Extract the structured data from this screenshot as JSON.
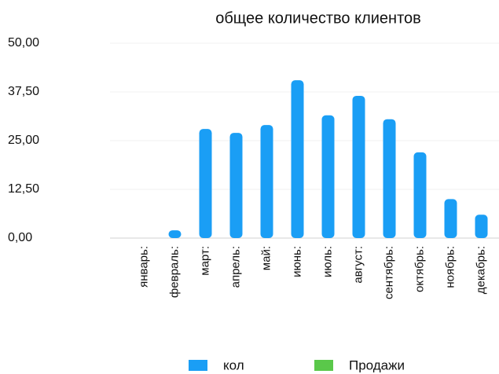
{
  "chart_data": {
    "type": "bar",
    "title": "общее количество клиентов",
    "categories": [
      "январь:",
      "февраль:",
      "март:",
      "апрель:",
      "май:",
      "июнь:",
      "июль:",
      "август:",
      "сентябрь:",
      "октябрь:",
      "ноябрь:",
      "декабрь:"
    ],
    "series": [
      {
        "name": "кол",
        "color": "#1a9ef5",
        "values": [
          0,
          2,
          28,
          27,
          29,
          40.5,
          31.5,
          36.5,
          30.5,
          22,
          10,
          6
        ]
      },
      {
        "name": "Продажи",
        "color": "#5ac84a",
        "values": [
          null,
          null,
          null,
          null,
          null,
          null,
          null,
          null,
          null,
          null,
          null,
          null
        ]
      }
    ],
    "ylim": [
      0,
      50
    ],
    "yticks": [
      {
        "value": 0,
        "label": "0,00"
      },
      {
        "value": 12.5,
        "label": "12,50"
      },
      {
        "value": 25,
        "label": "25,00"
      },
      {
        "value": 37.5,
        "label": "37,50"
      },
      {
        "value": 50,
        "label": "50,00"
      }
    ],
    "grid": true
  }
}
